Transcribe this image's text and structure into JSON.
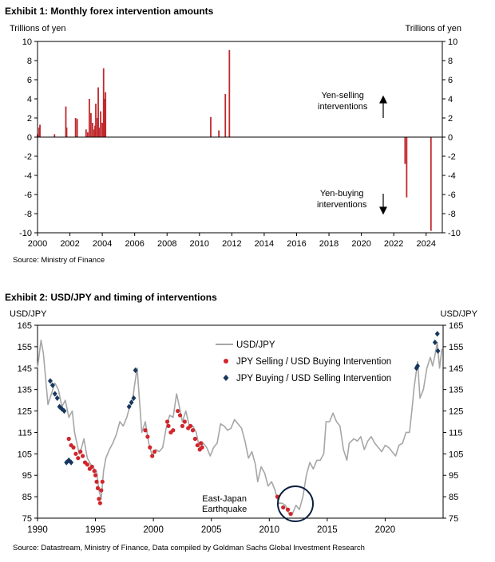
{
  "exhibit1": {
    "title": "Exhibit 1: Monthly forex intervention amounts",
    "y_unit_left": "Trillions  of yen",
    "y_unit_right": "Trillions  of yen",
    "annotation_selling": [
      "Yen-selling",
      "interventions"
    ],
    "annotation_buying": [
      "Yen-buying",
      "interventions"
    ],
    "source": "Source: Ministry of Finance"
  },
  "exhibit2": {
    "title": "Exhibit 2: USD/JPY and timing of interventions",
    "y_unit_left": "USD/JPY",
    "y_unit_right": "USD/JPY",
    "legend": [
      "USD/JPY",
      "JPY Selling / USD Buying Intervention",
      "JPY Buying / USD Selling Intervention"
    ],
    "annotation": [
      "East-Japan",
      "Earthquake"
    ],
    "source": "Source: Datastream, Ministry of Finance, Data compiled by Goldman Sachs Global Investment Research"
  },
  "colors": {
    "bars": "#c0282d",
    "line": "#a6a6a6",
    "selling_marker": "#d0262c",
    "buying_marker": "#17375e",
    "circle": "#0b1f3f"
  },
  "chart_data": [
    {
      "type": "bar",
      "title": "Exhibit 1: Monthly forex intervention amounts",
      "ylabel": "Trillions  of yen",
      "ylim": [
        -10,
        10
      ],
      "yticks": [
        -10,
        -8,
        -6,
        -4,
        -2,
        0,
        2,
        4,
        6,
        8,
        10
      ],
      "xlim": [
        2000,
        2025
      ],
      "xticks": [
        2000,
        2002,
        2004,
        2006,
        2008,
        2010,
        2012,
        2014,
        2016,
        2018,
        2020,
        2022,
        2024
      ],
      "x": [
        2000.0,
        2000.1,
        2000.15,
        2001.05,
        2001.75,
        2001.8,
        2002.35,
        2002.45,
        2003.0,
        2003.1,
        2003.2,
        2003.3,
        2003.4,
        2003.5,
        2003.55,
        2003.6,
        2003.7,
        2003.75,
        2003.8,
        2003.9,
        2004.0,
        2004.08,
        2004.15,
        2004.2,
        2010.7,
        2011.2,
        2011.6,
        2011.85,
        2022.7,
        2022.8,
        2024.3,
        2024.55
      ],
      "values": [
        0.3,
        1.0,
        1.3,
        0.3,
        3.2,
        1.0,
        2.0,
        1.9,
        0.8,
        0.5,
        4.0,
        2.5,
        1.5,
        0.8,
        1.2,
        3.5,
        2.0,
        5.2,
        1.0,
        2.7,
        1.5,
        7.2,
        4.0,
        4.7,
        2.1,
        0.7,
        4.5,
        9.1,
        -2.8,
        -6.3,
        -9.8,
        0
      ]
    },
    {
      "type": "line",
      "title": "Exhibit 2: USD/JPY and timing of interventions",
      "ylabel": "USD/JPY",
      "ylim": [
        75,
        165
      ],
      "yticks": [
        75,
        85,
        95,
        105,
        115,
        125,
        135,
        145,
        155,
        165
      ],
      "xlim": [
        1990,
        2025
      ],
      "xticks": [
        1990,
        1995,
        2000,
        2005,
        2010,
        2015,
        2020
      ],
      "series": [
        {
          "name": "USD/JPY",
          "x": [
            1990.0,
            1990.3,
            1990.5,
            1990.7,
            1990.9,
            1991.2,
            1991.5,
            1991.8,
            1992.1,
            1992.4,
            1992.7,
            1993.0,
            1993.2,
            1993.4,
            1993.6,
            1993.8,
            1994.0,
            1994.3,
            1994.6,
            1994.9,
            1995.1,
            1995.3,
            1995.5,
            1995.7,
            1995.9,
            1996.2,
            1996.5,
            1996.8,
            1997.1,
            1997.4,
            1997.7,
            1997.9,
            1998.2,
            1998.4,
            1998.6,
            1998.8,
            1999.0,
            1999.3,
            1999.6,
            1999.9,
            2000.2,
            2000.5,
            2000.8,
            2001.1,
            2001.4,
            2001.7,
            2002.0,
            2002.2,
            2002.5,
            2002.8,
            2003.1,
            2003.4,
            2003.7,
            2004.0,
            2004.3,
            2004.6,
            2004.9,
            2005.2,
            2005.5,
            2005.8,
            2006.1,
            2006.4,
            2006.7,
            2007.0,
            2007.3,
            2007.6,
            2007.9,
            2008.2,
            2008.5,
            2008.8,
            2009.0,
            2009.3,
            2009.6,
            2009.9,
            2010.2,
            2010.5,
            2010.8,
            2011.1,
            2011.4,
            2011.7,
            2012.0,
            2012.3,
            2012.6,
            2012.9,
            2013.2,
            2013.5,
            2013.8,
            2014.1,
            2014.4,
            2014.7,
            2014.9,
            2015.2,
            2015.5,
            2015.8,
            2016.1,
            2016.4,
            2016.7,
            2016.9,
            2017.3,
            2017.6,
            2017.9,
            2018.2,
            2018.5,
            2018.8,
            2019.1,
            2019.4,
            2019.7,
            2020.0,
            2020.3,
            2020.6,
            2020.9,
            2021.2,
            2021.5,
            2021.8,
            2022.1,
            2022.3,
            2022.5,
            2022.8,
            2023.0,
            2023.3,
            2023.6,
            2023.9,
            2024.1,
            2024.3,
            2024.5,
            2024.7,
            2024.9
          ],
          "y": [
            145,
            158,
            152,
            140,
            128,
            133,
            138,
            135,
            127,
            130,
            122,
            125,
            115,
            110,
            105,
            108,
            112,
            103,
            100,
            98,
            97,
            88,
            84,
            97,
            103,
            107,
            110,
            114,
            120,
            118,
            122,
            126,
            130,
            138,
            145,
            130,
            115,
            120,
            110,
            104,
            107,
            106,
            108,
            117,
            123,
            122,
            133,
            128,
            120,
            125,
            118,
            118,
            115,
            107,
            110,
            108,
            104,
            108,
            110,
            119,
            118,
            116,
            117,
            121,
            119,
            117,
            111,
            103,
            106,
            100,
            92,
            99,
            96,
            90,
            92,
            88,
            82,
            82,
            81,
            77,
            77,
            81,
            79,
            85,
            95,
            101,
            98,
            102,
            102,
            105,
            120,
            120,
            124,
            120,
            118,
            107,
            102,
            110,
            112,
            111,
            113,
            107,
            111,
            113,
            110,
            108,
            106,
            109,
            108,
            106,
            104,
            109,
            110,
            115,
            115,
            125,
            136,
            148,
            131,
            135,
            145,
            150,
            146,
            151,
            157,
            145,
            154
          ]
        },
        {
          "name": "JPY Selling / USD Buying Intervention",
          "x": [
            1992.7,
            1992.9,
            1993.1,
            1993.3,
            1993.5,
            1993.7,
            1993.9,
            1994.1,
            1994.3,
            1994.5,
            1994.7,
            1994.9,
            1995.0,
            1995.1,
            1995.2,
            1995.3,
            1995.4,
            1995.5,
            1995.6,
            1999.3,
            1999.5,
            1999.7,
            1999.9,
            2000.1,
            2001.2,
            2001.3,
            2001.5,
            2001.7,
            2002.1,
            2002.3,
            2002.5,
            2002.7,
            2003.0,
            2003.2,
            2003.4,
            2003.6,
            2003.8,
            2004.0,
            2004.1,
            2004.2,
            2010.7,
            2011.2,
            2011.6,
            2011.85
          ],
          "y": [
            112,
            109,
            108,
            105,
            103,
            106,
            104,
            101,
            100,
            98,
            99,
            97,
            95,
            92,
            89,
            84,
            82,
            88,
            92,
            116,
            113,
            108,
            104,
            106,
            120,
            118,
            115,
            116,
            125,
            123,
            118,
            120,
            117,
            118,
            116,
            112,
            109,
            107,
            110,
            108,
            85,
            80,
            79,
            77
          ]
        },
        {
          "name": "JPY Buying / USD Selling Intervention",
          "x": [
            1991.1,
            1991.3,
            1991.5,
            1991.7,
            1991.9,
            1992.1,
            1992.3,
            1992.5,
            1992.7,
            1992.9,
            1997.9,
            1998.1,
            1998.3,
            1998.45,
            2022.7,
            2022.8,
            2024.3,
            2024.5,
            2024.55
          ],
          "y": [
            139,
            137,
            133,
            131,
            127,
            126,
            125,
            101,
            102,
            101,
            127,
            129,
            131,
            144,
            145,
            146,
            157,
            161,
            153
          ]
        }
      ]
    }
  ]
}
